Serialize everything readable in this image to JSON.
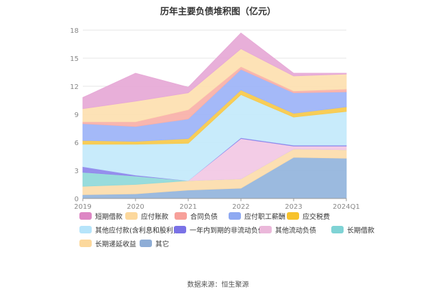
{
  "chart_data": {
    "type": "area",
    "stacked": true,
    "title": "历年主要负债堆积图（亿元）",
    "categories": [
      "2019",
      "2020",
      "2021",
      "2022",
      "2023",
      "2024Q1"
    ],
    "ylim": [
      0,
      18
    ],
    "yticks": [
      "0",
      "3",
      "6",
      "9",
      "12",
      "15",
      "18"
    ],
    "grid": true,
    "legend_position": "bottom",
    "series": [
      {
        "name": "其它",
        "color": "#92b4dc",
        "values": [
          0.4,
          0.5,
          0.9,
          1.1,
          4.4,
          4.3
        ]
      },
      {
        "name": "长期递延收益",
        "color": "#fcdcab",
        "values": [
          0.9,
          1.0,
          1.0,
          1.0,
          0.9,
          0.9
        ]
      },
      {
        "name": "长期借款",
        "color": "#8fd9d9",
        "values": [
          1.5,
          0.9,
          0.0,
          0.0,
          0.0,
          0.0
        ]
      },
      {
        "name": "其他流动负债",
        "color": "#f2c8e4",
        "values": [
          0.0,
          0.0,
          0.0,
          4.3,
          0.3,
          0.4
        ]
      },
      {
        "name": "一年内到期的非流动负债",
        "color": "#8c86ec",
        "values": [
          0.6,
          0.1,
          0.0,
          0.1,
          0.1,
          0.1
        ]
      },
      {
        "name": "其他应付款(含利息和股利)",
        "color": "#c3e9fb",
        "values": [
          2.4,
          3.3,
          4.0,
          4.6,
          3.0,
          3.6
        ]
      },
      {
        "name": "应交税费",
        "color": "#f7c94a",
        "values": [
          0.4,
          0.3,
          0.5,
          0.5,
          0.4,
          0.5
        ]
      },
      {
        "name": "应付职工薪酬",
        "color": "#9cb3f7",
        "values": [
          1.8,
          1.6,
          2.1,
          2.2,
          2.2,
          1.6
        ]
      },
      {
        "name": "合同负债",
        "color": "#f8b0a8",
        "values": [
          0.2,
          0.5,
          1.0,
          0.3,
          0.2,
          0.3
        ]
      },
      {
        "name": "应付账款",
        "color": "#fde0b0",
        "values": [
          1.4,
          2.2,
          1.8,
          1.9,
          1.6,
          1.6
        ]
      },
      {
        "name": "短期借款",
        "color": "#e6a8d6",
        "values": [
          1.2,
          3.0,
          0.6,
          1.7,
          0.3,
          0.1
        ]
      }
    ]
  },
  "legend": {
    "items": [
      {
        "name": "短期借款",
        "color": "#dd86c4"
      },
      {
        "name": "应付账款",
        "color": "#fcd89c"
      },
      {
        "name": "合同负债",
        "color": "#f7a09a"
      },
      {
        "name": "应付职工薪酬",
        "color": "#8ea9f2"
      },
      {
        "name": "应交税费",
        "color": "#f7c22c"
      },
      {
        "name": "其他应付款(含利息和股利)",
        "color": "#b6e4fa"
      },
      {
        "name": "一年内到期的非流动负债",
        "color": "#7a72e6"
      },
      {
        "name": "其他流动负债",
        "color": "#ebb8da"
      },
      {
        "name": "长期借款",
        "color": "#7fd3d5"
      },
      {
        "name": "长期递延收益",
        "color": "#fcd89c"
      },
      {
        "name": "其它",
        "color": "#8eadd6"
      }
    ]
  },
  "source": "数据来源：恒生聚源"
}
